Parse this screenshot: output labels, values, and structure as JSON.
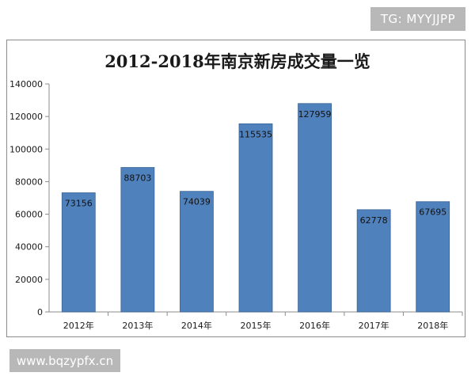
{
  "watermark_top": "TG: MYYJJPP",
  "watermark_bottom": "www.bqzypfx.cn",
  "chart_data": {
    "type": "bar",
    "title": "2012-2018年南京新房成交量一览",
    "categories": [
      "2012年",
      "2013年",
      "2014年",
      "2015年",
      "2016年",
      "2017年",
      "2018年"
    ],
    "values": [
      73156,
      88703,
      74039,
      115535,
      127959,
      62778,
      67695
    ],
    "data_labels": [
      "73156",
      "88703",
      "74039",
      "115535",
      "127959",
      "62778",
      "67695"
    ],
    "y_ticks": [
      "0",
      "20000",
      "40000",
      "60000",
      "80000",
      "100000",
      "120000",
      "140000"
    ],
    "ylim": [
      0,
      140000
    ],
    "xlabel": "",
    "ylabel": "",
    "grid": false,
    "legend": "none",
    "bar_color": "#4f81bd",
    "bar_edge_color": "#3a6394"
  }
}
